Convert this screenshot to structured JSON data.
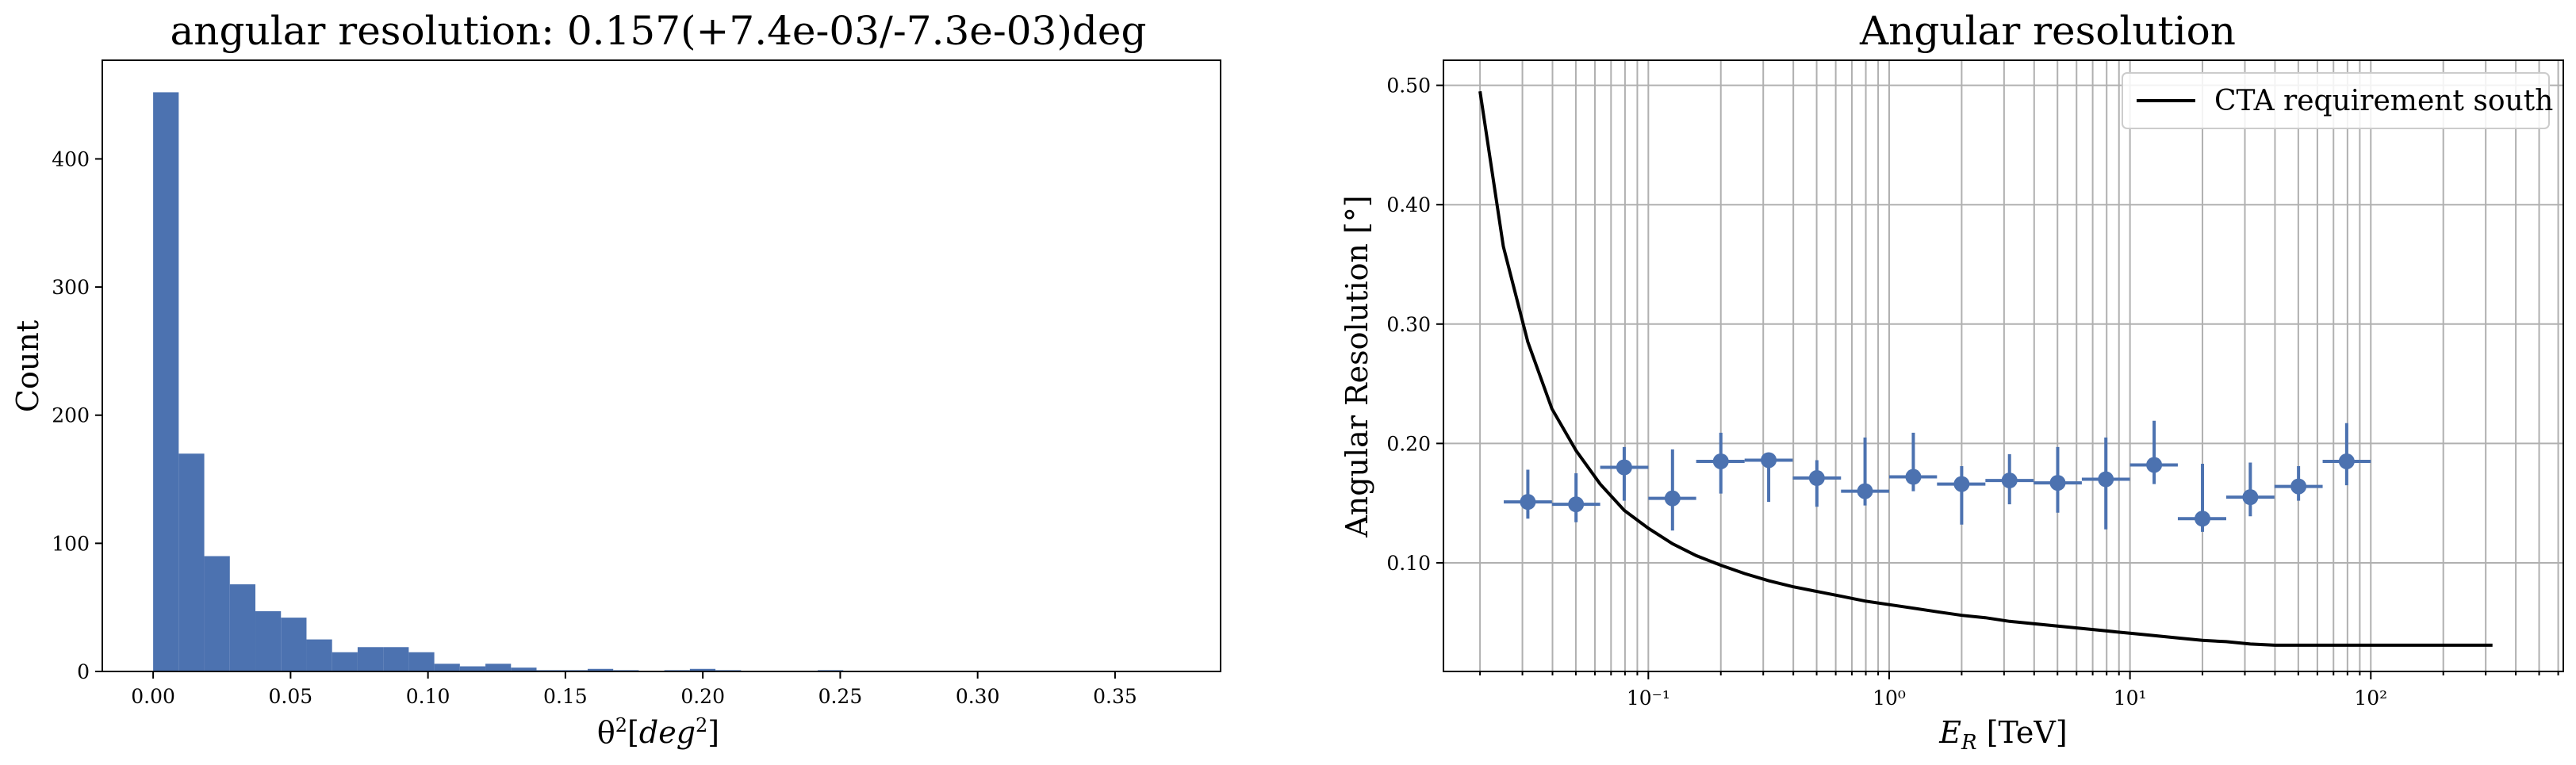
{
  "colors": {
    "hist": "#4c72b0",
    "points": "#4c72b0",
    "requirement": "#000000",
    "grid": "#b0b0b0",
    "axes": "#000000"
  },
  "chart_data": [
    {
      "type": "bar",
      "title": "angular resolution: 0.157(+7.4e-03/-7.3e-03)deg",
      "xlabel": "θ²[deg²]",
      "ylabel": "Count",
      "xlim": [
        -0.0185,
        0.3884
      ],
      "ylim": [
        0,
        477
      ],
      "grid": false,
      "xticks": [
        0.0,
        0.05,
        0.1,
        0.15,
        0.2,
        0.25,
        0.3,
        0.35
      ],
      "xtick_labels": [
        "0.00",
        "0.05",
        "0.10",
        "0.15",
        "0.20",
        "0.25",
        "0.30",
        "0.35"
      ],
      "yticks": [
        0,
        100,
        200,
        300,
        400
      ],
      "ytick_labels": [
        "0",
        "100",
        "200",
        "300",
        "400"
      ],
      "bin_width": 0.0093,
      "bin_start": 0.0,
      "values": [
        452,
        170,
        90,
        68,
        47,
        42,
        25,
        15,
        19,
        19,
        15,
        6,
        4,
        6,
        3,
        1,
        1,
        2,
        1,
        0,
        1,
        2,
        1,
        0,
        0,
        0,
        1,
        0,
        0,
        0,
        0,
        0,
        0,
        0,
        0,
        0,
        0,
        0,
        0,
        0
      ]
    },
    {
      "type": "scatter",
      "title": "Angular resolution",
      "xlabel": "E_R [TeV]",
      "ylabel": "Angular Resolution [°]",
      "x_scale": "log",
      "xlim": [
        0.0141,
        630
      ],
      "ylim": [
        0.009,
        0.521
      ],
      "grid": true,
      "legend_position": "top-right",
      "xticks": [
        0.1,
        1,
        10,
        100
      ],
      "xtick_labels": [
        "10⁻¹",
        "10⁰",
        "10¹",
        "10²"
      ],
      "yticks": [
        0.1,
        0.2,
        0.3,
        0.4,
        0.5
      ],
      "ytick_labels": [
        "0.10",
        "0.20",
        "0.30",
        "0.40",
        "0.50"
      ],
      "bin_edges": [
        0.0251,
        0.0398,
        0.0631,
        0.1,
        0.158,
        0.251,
        0.398,
        0.631,
        1.0,
        1.58,
        2.51,
        3.98,
        6.31,
        10.0,
        15.8,
        25.1,
        39.8,
        63.1,
        100
      ],
      "series": [
        {
          "name": "",
          "marker": "circle-errorbar",
          "x": [
            0.0316,
            0.0501,
            0.0794,
            0.126,
            0.2,
            0.316,
            0.501,
            0.794,
            1.26,
            2.0,
            3.16,
            5.01,
            7.94,
            12.6,
            20.0,
            31.6,
            50.1,
            79.4
          ],
          "y": [
            0.151,
            0.149,
            0.18,
            0.154,
            0.185,
            0.186,
            0.171,
            0.16,
            0.172,
            0.166,
            0.169,
            0.167,
            0.17,
            0.182,
            0.137,
            0.155,
            0.164,
            0.185
          ],
          "y_low": [
            0.137,
            0.134,
            0.152,
            0.127,
            0.158,
            0.151,
            0.147,
            0.148,
            0.16,
            0.132,
            0.149,
            0.142,
            0.128,
            0.166,
            0.126,
            0.139,
            0.152,
            0.165
          ],
          "y_high": [
            0.178,
            0.175,
            0.197,
            0.195,
            0.209,
            0.191,
            0.186,
            0.205,
            0.209,
            0.181,
            0.191,
            0.197,
            0.205,
            0.219,
            0.183,
            0.184,
            0.181,
            0.217
          ]
        },
        {
          "name": "CTA requirement south",
          "marker": "line",
          "x": [
            0.02,
            0.025,
            0.0316,
            0.0398,
            0.0501,
            0.0631,
            0.0794,
            0.1,
            0.126,
            0.158,
            0.2,
            0.251,
            0.316,
            0.398,
            0.501,
            0.631,
            0.794,
            1.0,
            1.26,
            1.58,
            2.0,
            2.51,
            3.16,
            3.98,
            5.01,
            6.31,
            7.94,
            10.0,
            12.6,
            15.8,
            20.0,
            25.1,
            31.6,
            40,
            60,
            100,
            200,
            320
          ],
          "y": [
            0.495,
            0.365,
            0.285,
            0.229,
            0.194,
            0.166,
            0.144,
            0.129,
            0.116,
            0.106,
            0.098,
            0.091,
            0.085,
            0.08,
            0.076,
            0.072,
            0.068,
            0.065,
            0.062,
            0.059,
            0.056,
            0.054,
            0.051,
            0.049,
            0.047,
            0.045,
            0.043,
            0.041,
            0.039,
            0.037,
            0.035,
            0.034,
            0.032,
            0.031,
            0.031,
            0.031,
            0.031,
            0.031
          ]
        }
      ]
    }
  ]
}
